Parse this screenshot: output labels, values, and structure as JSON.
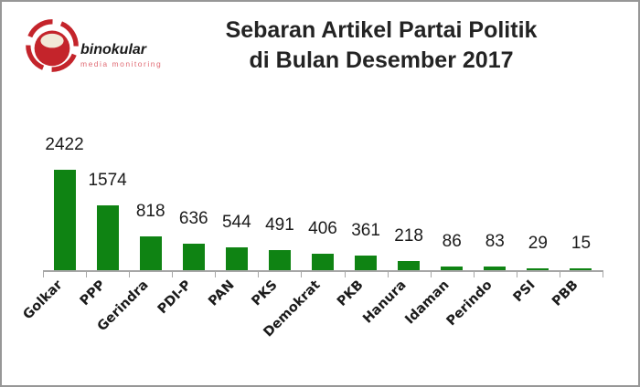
{
  "logo": {
    "name": "binokular",
    "tagline": "media monitoring",
    "brand_red": "#c4242b",
    "highlight_cream": "#f1e9d8"
  },
  "title": {
    "line1": "Sebaran Artikel Partai Politik",
    "line2": "di Bulan Desember 2017"
  },
  "chart_data": {
    "type": "bar",
    "title": "Sebaran Artikel Partai Politik di Bulan Desember 2017",
    "categories": [
      "Golkar",
      "PPP",
      "Gerindra",
      "PDI-P",
      "PAN",
      "PKS",
      "Demokrat",
      "PKB",
      "Hanura",
      "Idaman",
      "Perindo",
      "PSI",
      "PBB"
    ],
    "values": [
      2422,
      1574,
      818,
      636,
      544,
      491,
      406,
      361,
      218,
      86,
      83,
      29,
      15
    ],
    "xlabel": "",
    "ylabel": "",
    "ylim": [
      0,
      2422
    ],
    "grid": false,
    "legend": false,
    "data_labels": true,
    "bar_color": "#0f8313",
    "axis_color": "#a6a6a6",
    "label_color": "#1b1b1b",
    "x_tick_rotation_deg": 45
  }
}
